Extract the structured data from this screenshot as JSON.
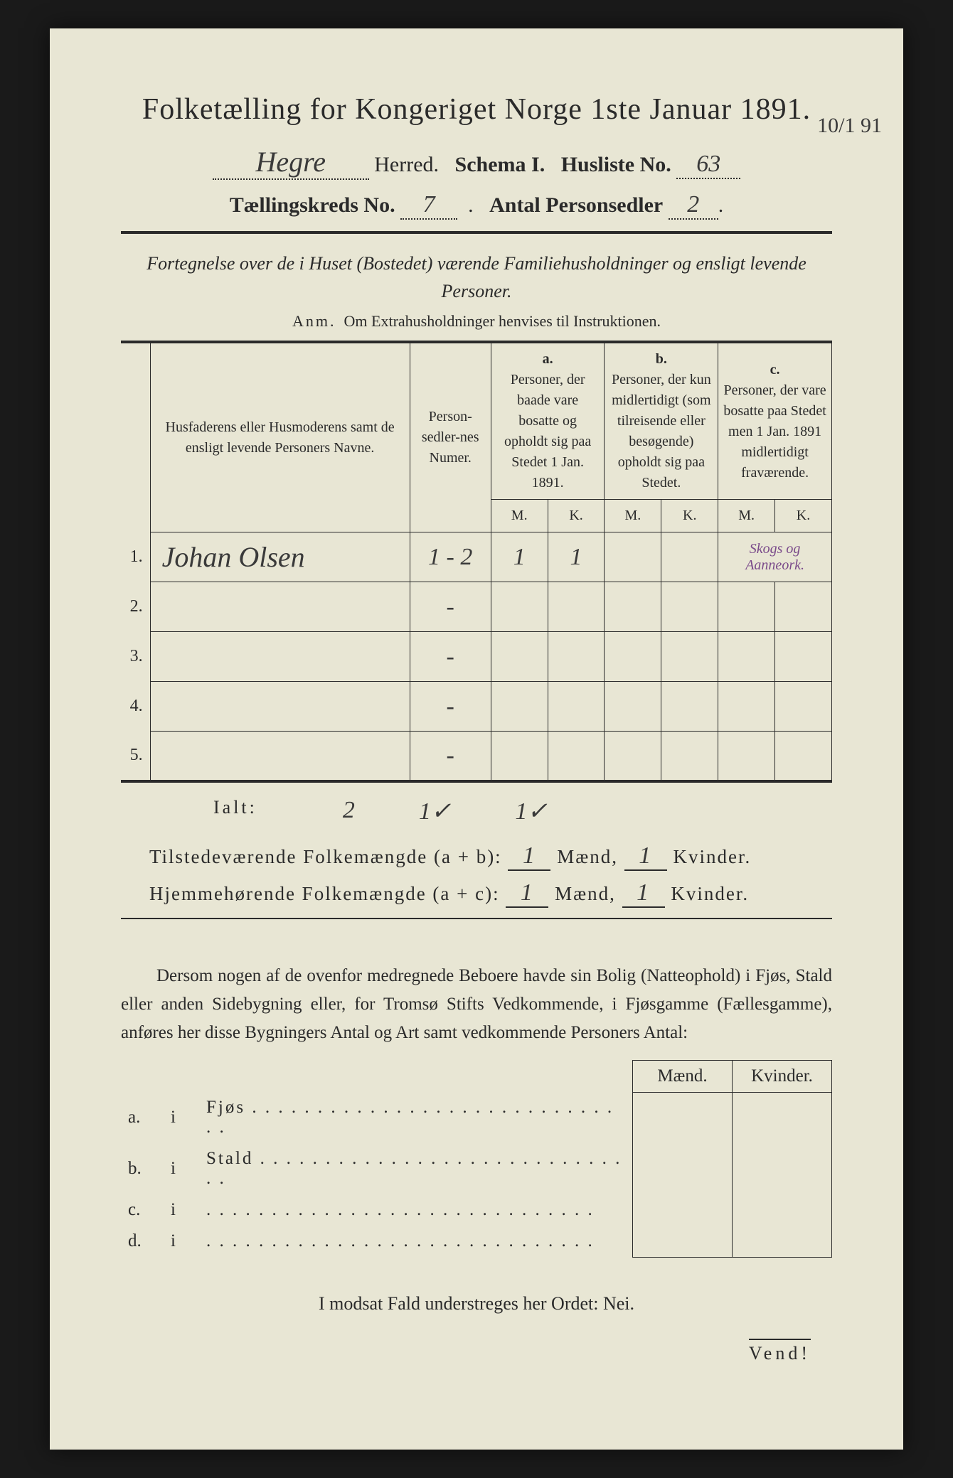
{
  "title": "Folketælling for Kongeriget Norge 1ste Januar 1891.",
  "herred_value": "Hegre",
  "line2_parts": {
    "herred": "Herred.",
    "schema": "Schema I.",
    "husliste": "Husliste No.",
    "husliste_value": "63"
  },
  "margin_note": "10/1 91",
  "line3_parts": {
    "kreds": "Tællingskreds No.",
    "kreds_value": "7",
    "antal": "Antal Personsedler",
    "antal_value": "2"
  },
  "subtitle": "Fortegnelse over de i Huset (Bostedet) værende Familiehusholdninger og ensligt levende Personer.",
  "anm": {
    "label": "Anm.",
    "text": "Om Extrahusholdninger henvises til Instruktionen."
  },
  "table": {
    "col_names": "Husfaderens eller Husmoderens samt de ensligt levende Personers Navne.",
    "col_numer": "Person-sedler-nes Numer.",
    "col_a_label": "a.",
    "col_a_text": "Personer, der baade vare bosatte og opholdt sig paa Stedet 1 Jan. 1891.",
    "col_b_label": "b.",
    "col_b_text": "Personer, der kun midlertidigt (som tilreisende eller besøgende) opholdt sig paa Stedet.",
    "col_c_label": "c.",
    "col_c_text": "Personer, der vare bosatte paa Stedet men 1 Jan. 1891 midlertidigt fraværende.",
    "mk_m": "M.",
    "mk_k": "K.",
    "rows": [
      {
        "n": "1.",
        "name": "Johan Olsen",
        "numer": "1 - 2",
        "a_m": "1",
        "a_k": "1",
        "b_m": "",
        "b_k": "",
        "c_m": "Skogs og Aanneork.",
        "c_k": ""
      },
      {
        "n": "2.",
        "name": "",
        "numer": "-",
        "a_m": "",
        "a_k": "",
        "b_m": "",
        "b_k": "",
        "c_m": "",
        "c_k": ""
      },
      {
        "n": "3.",
        "name": "",
        "numer": "-",
        "a_m": "",
        "a_k": "",
        "b_m": "",
        "b_k": "",
        "c_m": "",
        "c_k": ""
      },
      {
        "n": "4.",
        "name": "",
        "numer": "-",
        "a_m": "",
        "a_k": "",
        "b_m": "",
        "b_k": "",
        "c_m": "",
        "c_k": ""
      },
      {
        "n": "5.",
        "name": "",
        "numer": "-",
        "a_m": "",
        "a_k": "",
        "b_m": "",
        "b_k": "",
        "c_m": "",
        "c_k": ""
      }
    ],
    "ialt_label": "Ialt:",
    "ialt": {
      "numer": "2",
      "a_m": "1✓",
      "a_k": "1✓"
    }
  },
  "summary": {
    "line1_label": "Tilstedeværende Folkemængde (a + b):",
    "line2_label": "Hjemmehørende Folkemængde (a + c):",
    "maend": "Mænd,",
    "kvinder": "Kvinder.",
    "l1_m": "1",
    "l1_k": "1",
    "l2_m": "1",
    "l2_k": "1"
  },
  "para_text": "Dersom nogen af de ovenfor medregnede Beboere havde sin Bolig (Natteophold) i Fjøs, Stald eller anden Sidebygning eller, for Tromsø Stifts Vedkommende, i Fjøsgamme (Fællesgamme), anføres her disse Bygningers Antal og Art samt vedkommende Personers Antal:",
  "lower": {
    "head_m": "Mænd.",
    "head_k": "Kvinder.",
    "rows": [
      {
        "a": "a.",
        "i": "i",
        "label": "Fjøs"
      },
      {
        "a": "b.",
        "i": "i",
        "label": "Stald"
      },
      {
        "a": "c.",
        "i": "i",
        "label": ""
      },
      {
        "a": "d.",
        "i": "i",
        "label": ""
      }
    ]
  },
  "nei_line": "I modsat Fald understreges her Ordet: Nei.",
  "vend": "Vend!"
}
